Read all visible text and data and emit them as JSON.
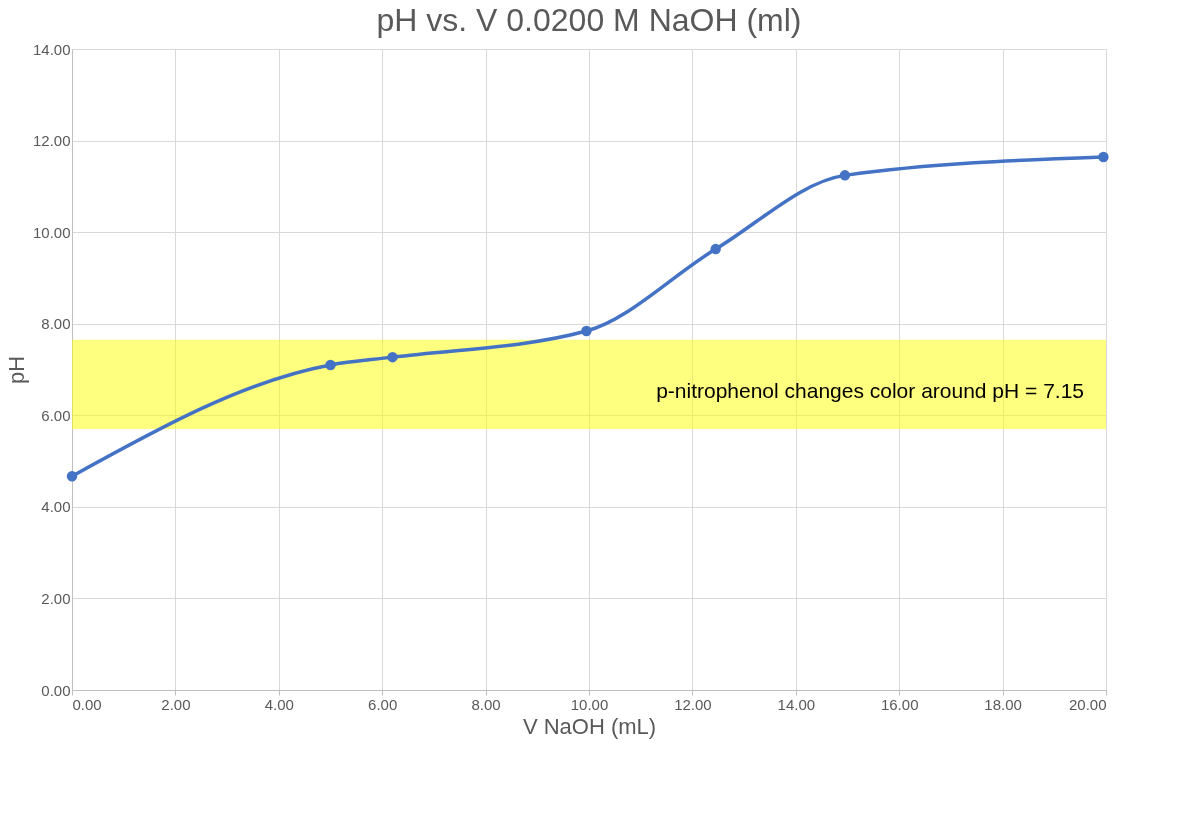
{
  "chart_data": {
    "type": "line",
    "title": "pH vs. V 0.0200 M NaOH (ml)",
    "xlabel": "V NaOH (mL)",
    "ylabel": "pH",
    "x": [
      0,
      5.0,
      6.2,
      9.95,
      12.45,
      14.95,
      19.95
    ],
    "series": [
      {
        "color": "#4472c4",
        "values": [
          4.67,
          7.1,
          7.27,
          7.84,
          9.63,
          11.24,
          11.64
        ]
      }
    ],
    "xlim": [
      0,
      20
    ],
    "ylim": [
      0,
      14
    ],
    "xticks": [
      {
        "value": 0,
        "label": "0.00"
      },
      {
        "value": 2,
        "label": "2.00"
      },
      {
        "value": 4,
        "label": "4.00"
      },
      {
        "value": 6,
        "label": "6.00"
      },
      {
        "value": 8,
        "label": "8.00"
      },
      {
        "value": 10,
        "label": "10.00"
      },
      {
        "value": 12,
        "label": "12.00"
      },
      {
        "value": 14,
        "label": "14.00"
      },
      {
        "value": 16,
        "label": "16.00"
      },
      {
        "value": 18,
        "label": "18.00"
      },
      {
        "value": 20,
        "label": "20.00"
      }
    ],
    "yticks": [
      {
        "value": 0,
        "label": "0.00"
      },
      {
        "value": 2,
        "label": "2.00"
      },
      {
        "value": 4,
        "label": "4.00"
      },
      {
        "value": 6,
        "label": "6.00"
      },
      {
        "value": 8,
        "label": "8.00"
      },
      {
        "value": 10,
        "label": "10.00"
      },
      {
        "value": 12,
        "label": "12.00"
      },
      {
        "value": 14,
        "label": "14.00"
      }
    ],
    "bands": [
      {
        "axis": "y",
        "from": 5.7,
        "to": 7.65,
        "label": "p-nitrophenol changes color around pH = 7.15",
        "color": "#ffff00"
      }
    ],
    "grid": true,
    "marker": "circle",
    "line_style": "solid"
  }
}
